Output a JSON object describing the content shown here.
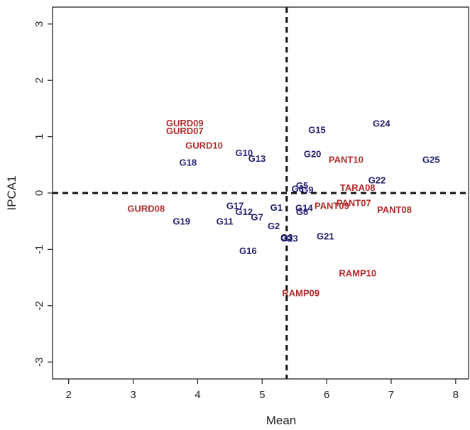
{
  "chart_data": {
    "type": "scatter",
    "title": "",
    "xlabel": "Mean",
    "ylabel": "IPCA1",
    "xlim": [
      1.75,
      8.2
    ],
    "ylim": [
      -3.3,
      3.3
    ],
    "x_ticks": [
      2,
      3,
      4,
      5,
      6,
      7,
      8
    ],
    "y_ticks": [
      -3,
      -2,
      -1,
      0,
      1,
      2,
      3
    ],
    "grid": false,
    "reference_lines": {
      "x": 5.38,
      "y": 0
    },
    "colors": {
      "genotype": "#1f1f6e",
      "environment": "#b02a2a",
      "axis": "#222222"
    },
    "series": [
      {
        "group": "genotypes",
        "points": [
          {
            "label": "G1",
            "x": 5.22,
            "y": -0.25
          },
          {
            "label": "G2",
            "x": 5.18,
            "y": -0.58
          },
          {
            "label": "G3",
            "x": 5.38,
            "y": -0.78
          },
          {
            "label": "G5",
            "x": 5.62,
            "y": 0.14
          },
          {
            "label": "G6",
            "x": 5.55,
            "y": 0.08
          },
          {
            "label": "G7",
            "x": 4.92,
            "y": -0.42
          },
          {
            "label": "G8",
            "x": 5.62,
            "y": -0.33
          },
          {
            "label": "G9",
            "x": 5.7,
            "y": 0.06
          },
          {
            "label": "G10",
            "x": 4.72,
            "y": 0.72
          },
          {
            "label": "G11",
            "x": 4.42,
            "y": -0.5
          },
          {
            "label": "G12",
            "x": 4.72,
            "y": -0.33
          },
          {
            "label": "G13",
            "x": 4.92,
            "y": 0.62
          },
          {
            "label": "G14",
            "x": 5.65,
            "y": -0.26
          },
          {
            "label": "G15",
            "x": 5.85,
            "y": 1.13
          },
          {
            "label": "G16",
            "x": 4.78,
            "y": -1.02
          },
          {
            "label": "G17",
            "x": 4.58,
            "y": -0.22
          },
          {
            "label": "G18",
            "x": 3.85,
            "y": 0.55
          },
          {
            "label": "G19",
            "x": 3.75,
            "y": -0.5
          },
          {
            "label": "G20",
            "x": 5.78,
            "y": 0.7
          },
          {
            "label": "G21",
            "x": 5.98,
            "y": -0.76
          },
          {
            "label": "G22",
            "x": 6.78,
            "y": 0.23
          },
          {
            "label": "G23",
            "x": 5.42,
            "y": -0.8
          },
          {
            "label": "G24",
            "x": 6.85,
            "y": 1.24
          },
          {
            "label": "G25",
            "x": 7.62,
            "y": 0.6
          }
        ]
      },
      {
        "group": "environments",
        "points": [
          {
            "label": "GURD09",
            "x": 3.8,
            "y": 1.25
          },
          {
            "label": "GURD07",
            "x": 3.8,
            "y": 1.11
          },
          {
            "label": "GURD10",
            "x": 4.1,
            "y": 0.85
          },
          {
            "label": "GURD08",
            "x": 3.2,
            "y": -0.27
          },
          {
            "label": "PANT10",
            "x": 6.3,
            "y": 0.6
          },
          {
            "label": "TARA08",
            "x": 6.48,
            "y": 0.1
          },
          {
            "label": "PANT07",
            "x": 6.42,
            "y": -0.17
          },
          {
            "label": "PANT09",
            "x": 6.08,
            "y": -0.22
          },
          {
            "label": "PANT08",
            "x": 7.05,
            "y": -0.29
          },
          {
            "label": "RAMP10",
            "x": 6.48,
            "y": -1.42
          },
          {
            "label": "RAMP09",
            "x": 5.6,
            "y": -1.77
          }
        ]
      }
    ]
  }
}
